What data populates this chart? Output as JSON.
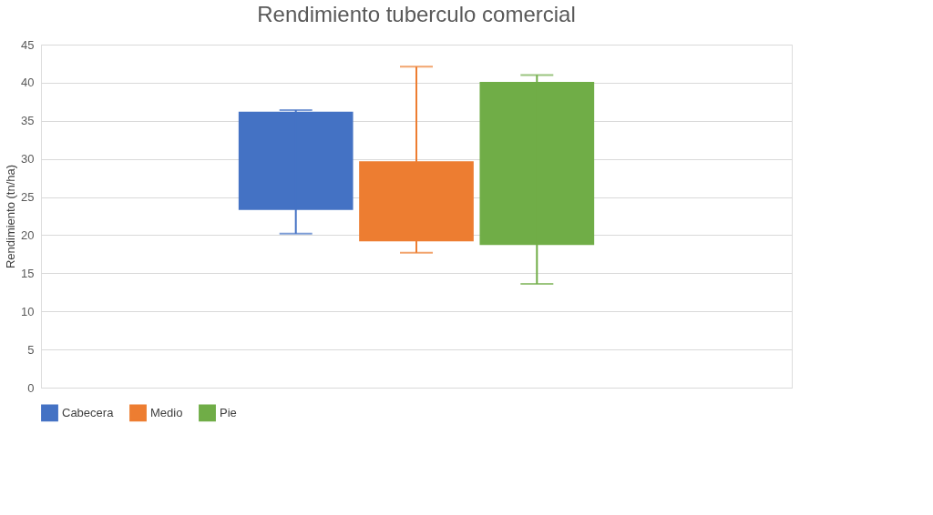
{
  "chart_data": {
    "type": "bar",
    "title": "Rendimiento tuberculo comercial",
    "ylabel": "Rendimiento (tn/ha)",
    "categories": [
      null
    ],
    "series": [
      {
        "name": "Cabecera",
        "color": "#4472c4",
        "values": [
          12.9
        ],
        "base": [
          23.3
        ],
        "errors": [
          [
            20.2,
            36.4
          ]
        ]
      },
      {
        "name": "Medio",
        "color": "#ed7d31",
        "values": [
          10.5
        ],
        "base": [
          19.2
        ],
        "errors": [
          [
            17.7,
            42.1
          ]
        ]
      },
      {
        "name": "Pie",
        "color": "#70ad47",
        "values": [
          21.4
        ],
        "base": [
          18.7
        ],
        "errors": [
          [
            13.6,
            41.0
          ]
        ]
      }
    ],
    "ylim": [
      0,
      45
    ],
    "yticks": [
      0,
      5,
      10,
      15,
      20,
      25,
      30,
      35,
      40,
      45
    ],
    "grid": "y",
    "legend": "bottom"
  }
}
